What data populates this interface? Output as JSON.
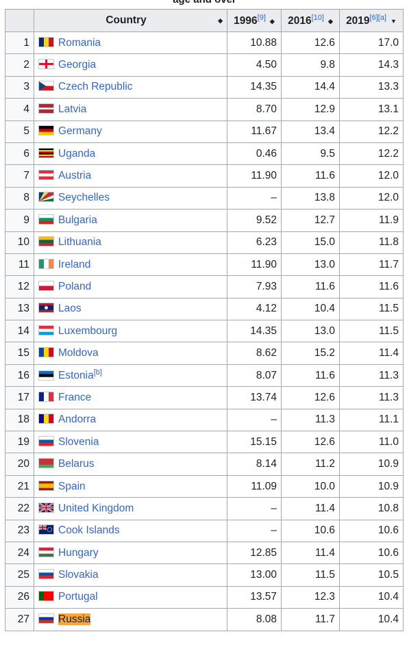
{
  "caption": "age and over",
  "columns": {
    "country": "Country",
    "y1996": "1996",
    "y1996_ref": "[9]",
    "y2016": "2016",
    "y2016_ref": "[10]",
    "y2019": "2019",
    "y2019_ref": "[6][a]"
  },
  "sort_icons": {
    "both": "◆",
    "desc": "▼"
  },
  "rows": [
    {
      "rank": "1",
      "country": "Romania",
      "v1996": "10.88",
      "v2016": "12.6",
      "v2019": "17.0",
      "flag": "romania-flag-icon",
      "colors": [
        "#002B7F",
        "#FCD116",
        "#CE1126"
      ],
      "dir": "v"
    },
    {
      "rank": "2",
      "country": "Georgia",
      "v1996": "4.50",
      "v2016": "9.8",
      "v2019": "14.3",
      "flag": "georgia-flag-icon",
      "colors": [
        "#ffffff",
        "#e8112d"
      ],
      "dir": "georgia"
    },
    {
      "rank": "3",
      "country": "Czech Republic",
      "v1996": "14.35",
      "v2016": "14.4",
      "v2019": "13.3",
      "flag": "czech-flag-icon",
      "colors": [
        "#ffffff",
        "#d7141a",
        "#11457e"
      ],
      "dir": "czech"
    },
    {
      "rank": "4",
      "country": "Latvia",
      "v1996": "8.70",
      "v2016": "12.9",
      "v2019": "13.1",
      "flag": "latvia-flag-icon",
      "colors": [
        "#9e3039",
        "#ffffff",
        "#9e3039"
      ],
      "dir": "latvia"
    },
    {
      "rank": "5",
      "country": "Germany",
      "v1996": "11.67",
      "v2016": "13.4",
      "v2019": "12.2",
      "flag": "germany-flag-icon",
      "colors": [
        "#000000",
        "#dd0000",
        "#ffce00"
      ],
      "dir": "h"
    },
    {
      "rank": "6",
      "country": "Uganda",
      "v1996": "0.46",
      "v2016": "9.5",
      "v2019": "12.2",
      "flag": "uganda-flag-icon",
      "colors": [
        "#000000",
        "#fcdc04",
        "#d90000",
        "#000000",
        "#fcdc04",
        "#d90000"
      ],
      "dir": "h"
    },
    {
      "rank": "7",
      "country": "Austria",
      "v1996": "11.90",
      "v2016": "11.6",
      "v2019": "12.0",
      "flag": "austria-flag-icon",
      "colors": [
        "#ed2939",
        "#ffffff",
        "#ed2939"
      ],
      "dir": "h"
    },
    {
      "rank": "8",
      "country": "Seychelles",
      "v1996": "–",
      "v2016": "13.8",
      "v2019": "12.0",
      "flag": "seychelles-flag-icon",
      "colors": [
        "#003f87",
        "#fcd856",
        "#d62828",
        "#ffffff",
        "#007a3d"
      ],
      "dir": "seychelles"
    },
    {
      "rank": "9",
      "country": "Bulgaria",
      "v1996": "9.52",
      "v2016": "12.7",
      "v2019": "11.9",
      "flag": "bulgaria-flag-icon",
      "colors": [
        "#ffffff",
        "#00966e",
        "#d62612"
      ],
      "dir": "h"
    },
    {
      "rank": "10",
      "country": "Lithuania",
      "v1996": "6.23",
      "v2016": "15.0",
      "v2019": "11.8",
      "flag": "lithuania-flag-icon",
      "colors": [
        "#fdb913",
        "#006a44",
        "#c1272d"
      ],
      "dir": "h"
    },
    {
      "rank": "11",
      "country": "Ireland",
      "v1996": "11.90",
      "v2016": "13.0",
      "v2019": "11.7",
      "flag": "ireland-flag-icon",
      "colors": [
        "#169b62",
        "#ffffff",
        "#ff883e"
      ],
      "dir": "v"
    },
    {
      "rank": "12",
      "country": "Poland",
      "v1996": "7.93",
      "v2016": "11.6",
      "v2019": "11.6",
      "flag": "poland-flag-icon",
      "colors": [
        "#ffffff",
        "#dc143c"
      ],
      "dir": "h"
    },
    {
      "rank": "13",
      "country": "Laos",
      "v1996": "4.12",
      "v2016": "10.4",
      "v2019": "11.5",
      "flag": "laos-flag-icon",
      "colors": [
        "#ce1126",
        "#002868",
        "#ce1126"
      ],
      "dir": "laos"
    },
    {
      "rank": "14",
      "country": "Luxembourg",
      "v1996": "14.35",
      "v2016": "13.0",
      "v2019": "11.5",
      "flag": "luxembourg-flag-icon",
      "colors": [
        "#ed2939",
        "#ffffff",
        "#00a1de"
      ],
      "dir": "h"
    },
    {
      "rank": "15",
      "country": "Moldova",
      "v1996": "8.62",
      "v2016": "15.2",
      "v2019": "11.4",
      "flag": "moldova-flag-icon",
      "colors": [
        "#0046ae",
        "#ffd200",
        "#cc092f"
      ],
      "dir": "v"
    },
    {
      "rank": "16",
      "country": "Estonia",
      "ref": "[b]",
      "v1996": "8.07",
      "v2016": "11.6",
      "v2019": "11.3",
      "flag": "estonia-flag-icon",
      "colors": [
        "#0072ce",
        "#000000",
        "#ffffff"
      ],
      "dir": "h"
    },
    {
      "rank": "17",
      "country": "France",
      "v1996": "13.74",
      "v2016": "12.6",
      "v2019": "11.3",
      "flag": "france-flag-icon",
      "colors": [
        "#002395",
        "#ffffff",
        "#ed2939"
      ],
      "dir": "v"
    },
    {
      "rank": "18",
      "country": "Andorra",
      "v1996": "–",
      "v2016": "11.3",
      "v2019": "11.1",
      "flag": "andorra-flag-icon",
      "colors": [
        "#10069f",
        "#fedd00",
        "#d50032"
      ],
      "dir": "v"
    },
    {
      "rank": "19",
      "country": "Slovenia",
      "v1996": "15.15",
      "v2016": "12.6",
      "v2019": "11.0",
      "flag": "slovenia-flag-icon",
      "colors": [
        "#ffffff",
        "#005da4",
        "#ed1c24"
      ],
      "dir": "h"
    },
    {
      "rank": "20",
      "country": "Belarus",
      "v1996": "8.14",
      "v2016": "11.2",
      "v2019": "10.9",
      "flag": "belarus-flag-icon",
      "colors": [
        "#c8313e",
        "#c8313e",
        "#4aa657"
      ],
      "dir": "h"
    },
    {
      "rank": "21",
      "country": "Spain",
      "v1996": "11.09",
      "v2016": "10.0",
      "v2019": "10.9",
      "flag": "spain-flag-icon",
      "colors": [
        "#aa151b",
        "#f1bf00",
        "#f1bf00",
        "#aa151b"
      ],
      "dir": "h"
    },
    {
      "rank": "22",
      "country": "United Kingdom",
      "v1996": "–",
      "v2016": "11.4",
      "v2019": "10.8",
      "flag": "uk-flag-icon",
      "colors": [
        "#012169",
        "#ffffff",
        "#c8102e"
      ],
      "dir": "uk"
    },
    {
      "rank": "23",
      "country": "Cook Islands",
      "v1996": "–",
      "v2016": "10.6",
      "v2019": "10.6",
      "flag": "cook-islands-flag-icon",
      "colors": [
        "#012169",
        "#ffffff",
        "#c8102e"
      ],
      "dir": "cook"
    },
    {
      "rank": "24",
      "country": "Hungary",
      "v1996": "12.85",
      "v2016": "11.4",
      "v2019": "10.6",
      "flag": "hungary-flag-icon",
      "colors": [
        "#ce2939",
        "#ffffff",
        "#477050"
      ],
      "dir": "h"
    },
    {
      "rank": "25",
      "country": "Slovakia",
      "v1996": "13.00",
      "v2016": "11.5",
      "v2019": "10.5",
      "flag": "slovakia-flag-icon",
      "colors": [
        "#ffffff",
        "#0b4ea2",
        "#ee1c25"
      ],
      "dir": "h"
    },
    {
      "rank": "26",
      "country": "Portugal",
      "v1996": "13.57",
      "v2016": "12.3",
      "v2019": "10.4",
      "flag": "portugal-flag-icon",
      "colors": [
        "#006600",
        "#ff0000",
        "#ff0000"
      ],
      "dir": "v"
    },
    {
      "rank": "27",
      "country": "Russia",
      "v1996": "8.08",
      "v2016": "11.7",
      "v2019": "10.4",
      "flag": "russia-flag-icon",
      "colors": [
        "#ffffff",
        "#0039a6",
        "#d52b1e"
      ],
      "dir": "h",
      "highlight": true
    }
  ]
}
